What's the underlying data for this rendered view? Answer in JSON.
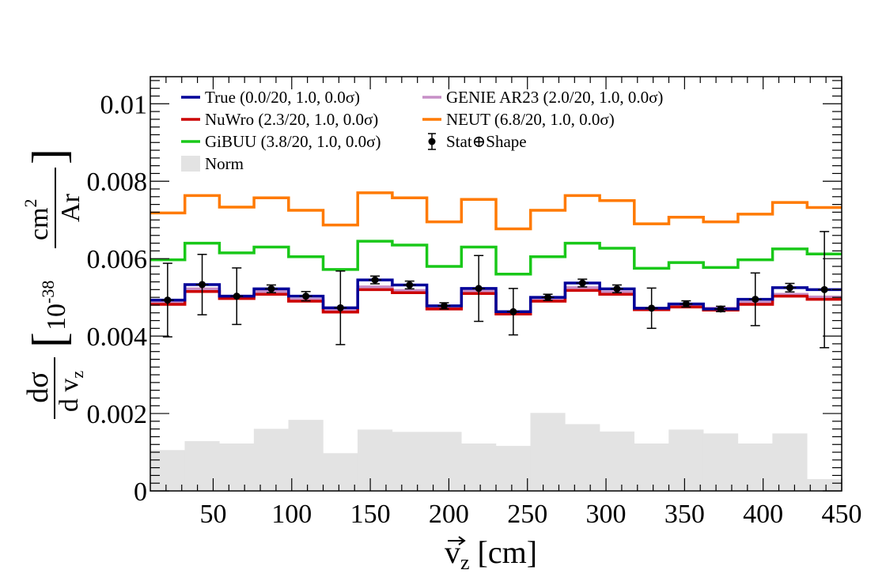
{
  "chart_data": {
    "type": "line",
    "xlabel_main": "v",
    "xlabel_sub": "z",
    "xlabel_unit": "[cm]",
    "ylabel_num": "dσ",
    "ylabel_den_main": "d v",
    "ylabel_den_sub": "z",
    "ylabel_bracket_text": "10",
    "ylabel_exp": "-38",
    "ylabel_unit_num": "cm",
    "ylabel_unit_num_sup": "2",
    "ylabel_unit_den": "Ar",
    "xlim": [
      10,
      450
    ],
    "ylim": [
      0,
      0.0107
    ],
    "x_ticks": [
      50,
      100,
      150,
      200,
      250,
      300,
      350,
      400,
      450
    ],
    "x_tick_labels": [
      "50",
      "100",
      "150",
      "200",
      "250",
      "300",
      "350",
      "400",
      "450"
    ],
    "y_ticks": [
      0,
      0.002,
      0.004,
      0.006,
      0.008,
      0.01
    ],
    "y_tick_labels": [
      "0",
      "0.002",
      "0.004",
      "0.006",
      "0.008",
      "0.01"
    ],
    "bin_edges": [
      10,
      32,
      54,
      76,
      98,
      120,
      142,
      164,
      186,
      208,
      230,
      252,
      274,
      296,
      318,
      340,
      362,
      384,
      406,
      428,
      450
    ],
    "series": [
      {
        "name": "Norm",
        "kind": "fill",
        "color": "#e3e3e3",
        "values": [
          0.00105,
          0.00128,
          0.00122,
          0.0016,
          0.00183,
          0.00097,
          0.00158,
          0.00152,
          0.00152,
          0.00122,
          0.00116,
          0.00201,
          0.00172,
          0.00153,
          0.00122,
          0.00158,
          0.00148,
          0.00122,
          0.00148,
          0.0003
        ]
      },
      {
        "name": "NEUT (6.8/20, 1.0, 0.0σ)",
        "kind": "line",
        "color": "#ff7a00",
        "values": [
          0.00718,
          0.00763,
          0.00733,
          0.00757,
          0.00725,
          0.00687,
          0.0077,
          0.00757,
          0.00695,
          0.00753,
          0.00677,
          0.00725,
          0.00763,
          0.0075,
          0.0069,
          0.00707,
          0.00695,
          0.00715,
          0.00745,
          0.00732
        ]
      },
      {
        "name": "GiBUU (3.8/20, 1.0, 0.0σ)",
        "kind": "line",
        "color": "#19c819",
        "values": [
          0.00597,
          0.0064,
          0.00615,
          0.0063,
          0.00605,
          0.00572,
          0.00645,
          0.00635,
          0.0058,
          0.0063,
          0.0056,
          0.00605,
          0.0064,
          0.00627,
          0.00575,
          0.0059,
          0.00577,
          0.00597,
          0.00625,
          0.00612
        ]
      },
      {
        "name": "GENIE AR23 (2.0/20, 1.0, 0.0σ)",
        "kind": "line",
        "color": "#c78fc7",
        "values": [
          0.00487,
          0.00522,
          0.00503,
          0.00515,
          0.00495,
          0.00467,
          0.00527,
          0.00518,
          0.00474,
          0.00516,
          0.00462,
          0.00495,
          0.00525,
          0.00514,
          0.00472,
          0.0048,
          0.00472,
          0.00487,
          0.00508,
          0.00501
        ]
      },
      {
        "name": "NuWro (2.3/20, 1.0, 0.0σ)",
        "kind": "line",
        "color": "#cc0000",
        "values": [
          0.00482,
          0.00515,
          0.00497,
          0.00508,
          0.0049,
          0.00462,
          0.0052,
          0.00512,
          0.0047,
          0.0051,
          0.00457,
          0.0049,
          0.00518,
          0.00508,
          0.00468,
          0.00475,
          0.00467,
          0.00482,
          0.00503,
          0.00495
        ]
      },
      {
        "name": "True (0.0/20, 1.0, 0.0σ)",
        "kind": "line",
        "color": "#000099",
        "values": [
          0.00493,
          0.00533,
          0.00503,
          0.00522,
          0.00503,
          0.00473,
          0.00545,
          0.00532,
          0.00478,
          0.00523,
          0.00463,
          0.005,
          0.00537,
          0.00522,
          0.00472,
          0.00483,
          0.0047,
          0.00495,
          0.00525,
          0.0052
        ]
      }
    ],
    "data_points": {
      "name": "Stat⊕Shape",
      "color": "#000000",
      "x": [
        21,
        43,
        65,
        87,
        109,
        131,
        153,
        175,
        197,
        219,
        241,
        263,
        285,
        307,
        329,
        351,
        373,
        395,
        417,
        439
      ],
      "y": [
        0.00493,
        0.00533,
        0.00503,
        0.00522,
        0.00503,
        0.00473,
        0.00545,
        0.00532,
        0.00478,
        0.00523,
        0.00463,
        0.005,
        0.00537,
        0.00522,
        0.00472,
        0.00483,
        0.0047,
        0.00495,
        0.00525,
        0.0052
      ],
      "err": [
        0.00095,
        0.00078,
        0.00073,
        0.0001,
        0.00012,
        0.00095,
        0.0001,
        0.0001,
        8e-05,
        0.00085,
        0.0006,
        8e-05,
        0.0001,
        0.0001,
        0.00052,
        8e-05,
        7e-05,
        0.00068,
        0.00011,
        0.0015
      ]
    },
    "legend": {
      "placement": "top-left",
      "entries": [
        {
          "label": "True (0.0/20, 1.0, 0.0σ)",
          "color": "#000099",
          "kind": "line"
        },
        {
          "label": "GENIE AR23 (2.0/20, 1.0, 0.0σ)",
          "color": "#c78fc7",
          "kind": "line"
        },
        {
          "label": "NuWro (2.3/20, 1.0, 0.0σ)",
          "color": "#cc0000",
          "kind": "line"
        },
        {
          "label": "NEUT (6.8/20, 1.0, 0.0σ)",
          "color": "#ff7a00",
          "kind": "line"
        },
        {
          "label": "GiBUU (3.8/20, 1.0, 0.0σ)",
          "color": "#19c819",
          "kind": "line"
        },
        {
          "label": "Stat⊕Shape",
          "color": "#000000",
          "kind": "marker"
        },
        {
          "label": "Norm",
          "color": "#e3e3e3",
          "kind": "box"
        }
      ]
    },
    "grid": false
  }
}
